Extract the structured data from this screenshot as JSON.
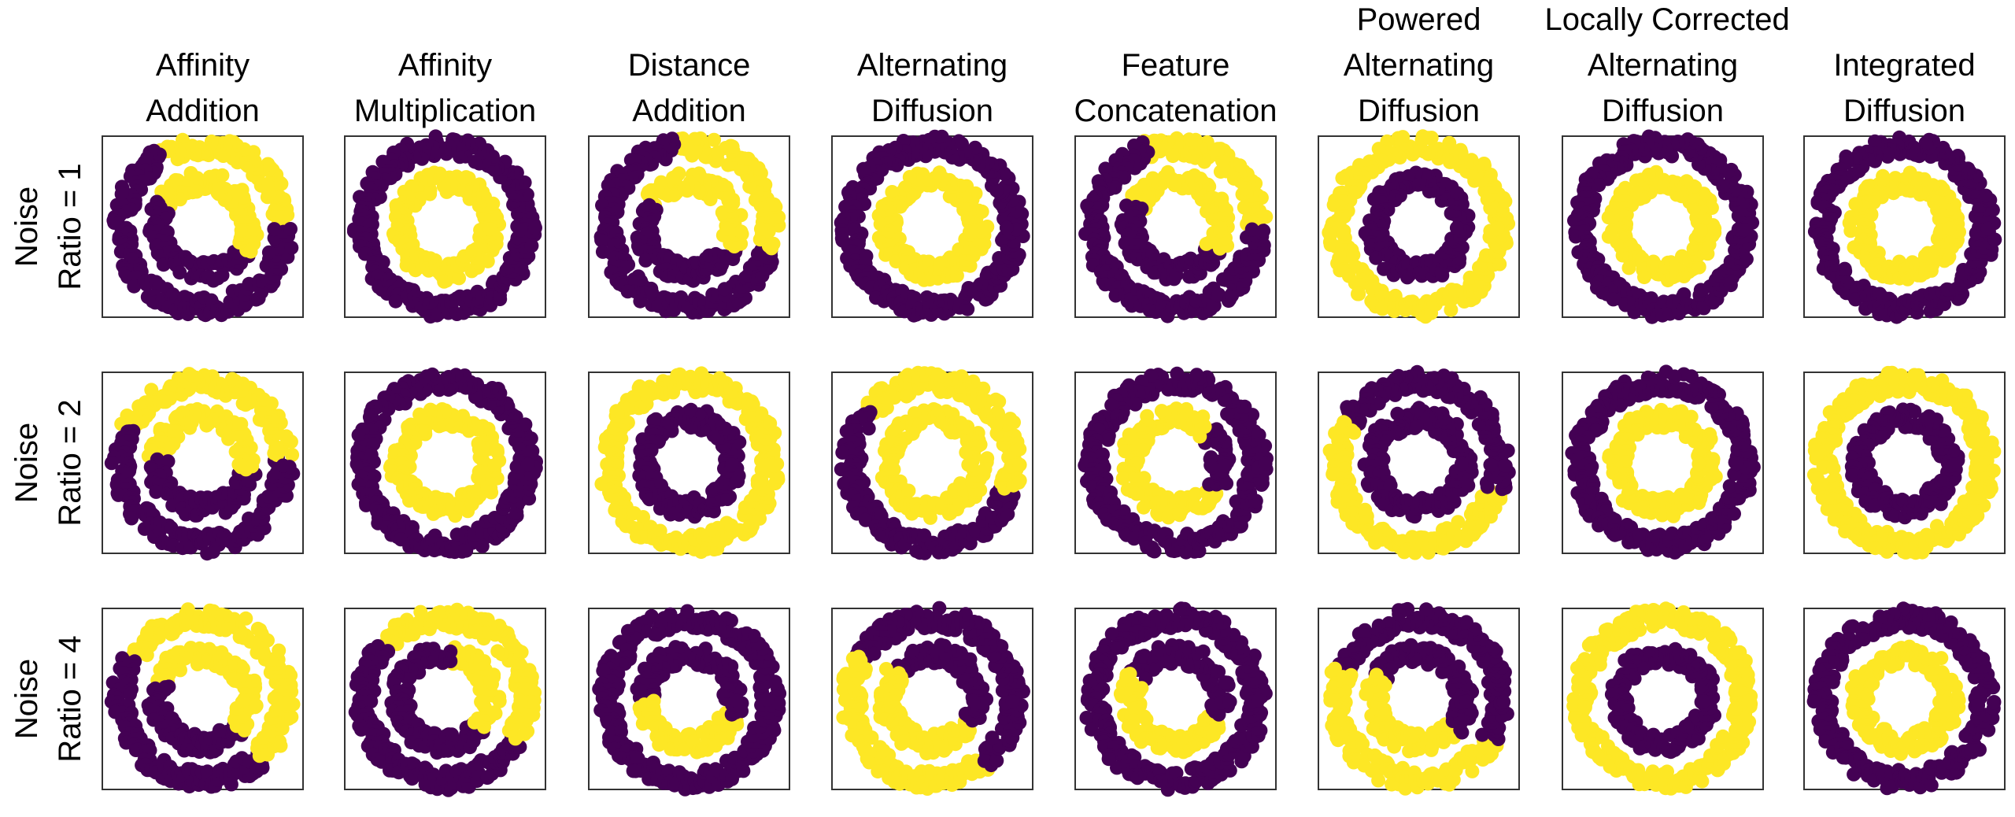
{
  "columns": [
    {
      "title": [
        "Affinity",
        "Addition"
      ]
    },
    {
      "title": [
        "Affinity",
        "Multiplication"
      ]
    },
    {
      "title": [
        "Distance",
        "Addition"
      ]
    },
    {
      "title": [
        "Alternating",
        "Diffusion"
      ]
    },
    {
      "title": [
        "Feature",
        "Concatenation"
      ]
    },
    {
      "title": [
        "Powered",
        "Alternating",
        "Diffusion"
      ]
    },
    {
      "title": [
        "Locally Corrected",
        "Alternating",
        "Diffusion"
      ]
    },
    {
      "title": [
        "Integrated",
        "Diffusion"
      ]
    }
  ],
  "rows": [
    {
      "label": [
        "Noise",
        "Ratio = 1"
      ]
    },
    {
      "label": [
        "Noise",
        "Ratio = 2"
      ]
    },
    {
      "label": [
        "Noise",
        "Ratio = 4"
      ]
    }
  ],
  "colors": {
    "purple": "#440154",
    "yellow": "#fde725",
    "frame": "#333333"
  },
  "chart_data": {
    "type": "scatter",
    "grid": false,
    "note": "Two concentric noisy rings per panel; color = assigned cluster. Yellow shown as angular arcs (degrees, 0 = right, counter-clockwise).",
    "panels": [
      [
        {
          "outer": "purple",
          "inner": "purple",
          "outer_yellow_arcs": [
            [
              0,
              120
            ]
          ],
          "inner_yellow_arcs": [
            [
              -30,
              150
            ]
          ]
        },
        {
          "outer": "purple",
          "inner": "yellow",
          "outer_yellow_arcs": [],
          "inner_yellow_arcs": []
        },
        {
          "outer": "purple",
          "inner": "purple",
          "outer_yellow_arcs": [
            [
              -15,
              100
            ]
          ],
          "inner_yellow_arcs": [
            [
              -25,
              150
            ]
          ]
        },
        {
          "outer": "purple",
          "inner": "yellow",
          "outer_yellow_arcs": [],
          "inner_yellow_arcs": []
        },
        {
          "outer": "purple",
          "inner": "purple",
          "outer_yellow_arcs": [
            [
              0,
              110
            ]
          ],
          "inner_yellow_arcs": [
            [
              -30,
              150
            ]
          ]
        },
        {
          "outer": "yellow",
          "inner": "purple",
          "outer_yellow_arcs": [],
          "inner_yellow_arcs": []
        },
        {
          "outer": "purple",
          "inner": "yellow",
          "outer_yellow_arcs": [],
          "inner_yellow_arcs": []
        },
        {
          "outer": "purple",
          "inner": "yellow",
          "outer_yellow_arcs": [],
          "inner_yellow_arcs": []
        }
      ],
      [
        {
          "outer": "purple",
          "inner": "purple",
          "outer_yellow_arcs": [
            [
              5,
              155
            ]
          ],
          "inner_yellow_arcs": [
            [
              -10,
              175
            ]
          ]
        },
        {
          "outer": "purple",
          "inner": "yellow",
          "outer_yellow_arcs": [],
          "inner_yellow_arcs": []
        },
        {
          "outer": "yellow",
          "inner": "purple",
          "outer_yellow_arcs": [],
          "inner_yellow_arcs": []
        },
        {
          "outer": "purple",
          "inner": "yellow",
          "outer_yellow_arcs": [
            [
              -20,
              140
            ]
          ],
          "inner_yellow_arcs": []
        },
        {
          "outer": "purple",
          "inner": "yellow",
          "outer_yellow_arcs": [],
          "inner_yellow_arcs": [
            [
              -35,
              45
            ]
          ],
          "inner_yellow_is_purple": true
        },
        {
          "outer": "yellow",
          "inner": "purple",
          "outer_yellow_arcs": [],
          "outer_purple_arcs": [
            [
              -20,
              150
            ]
          ]
        },
        {
          "outer": "purple",
          "inner": "yellow",
          "outer_yellow_arcs": [],
          "inner_yellow_arcs": []
        },
        {
          "outer": "yellow",
          "inner": "purple",
          "outer_yellow_arcs": [],
          "inner_yellow_arcs": []
        }
      ],
      [
        {
          "outer": "purple",
          "inner": "purple",
          "outer_yellow_arcs": [
            [
              -45,
              150
            ]
          ],
          "inner_yellow_arcs": [
            [
              -40,
              160
            ]
          ]
        },
        {
          "outer": "purple",
          "inner": "purple",
          "outer_yellow_arcs": [
            [
              -30,
              140
            ]
          ],
          "inner_yellow_arcs": [
            [
              -40,
              80
            ]
          ]
        },
        {
          "outer": "purple",
          "inner": "purple",
          "outer_yellow_arcs": [],
          "inner_yellow_arcs": [
            [
              180,
              340
            ]
          ]
        },
        {
          "outer": "purple",
          "inner": "purple",
          "outer_yellow_arcs": [
            [
              150,
              310
            ]
          ],
          "inner_yellow_arcs": [
            [
              140,
              330
            ]
          ]
        },
        {
          "outer": "purple",
          "inner": "purple",
          "outer_yellow_arcs": [],
          "inner_yellow_arcs": [
            [
              150,
              340
            ]
          ]
        },
        {
          "outer": "purple",
          "inner": "purple",
          "outer_yellow_arcs": [
            [
              160,
              330
            ]
          ],
          "inner_yellow_arcs": [
            [
              150,
              320
            ]
          ]
        },
        {
          "outer": "yellow",
          "inner": "purple",
          "outer_yellow_arcs": [],
          "inner_yellow_arcs": []
        },
        {
          "outer": "purple",
          "inner": "yellow",
          "outer_yellow_arcs": [],
          "inner_yellow_arcs": []
        }
      ]
    ]
  }
}
